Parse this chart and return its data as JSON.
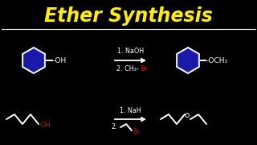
{
  "bg_color": "#000000",
  "title": "Ether Synthesis",
  "title_color": "#FFEE00",
  "title_fontsize": 17,
  "line_color": "#FFFFFF",
  "r1_step1": "1. NaOH",
  "r1_step2_white": "2. CH₃-",
  "r1_step2_red": "Br",
  "r1_reactant_oh": "-OH",
  "r1_product_och3": "-OCH₃",
  "r2_step1": "1. NaH",
  "r2_step2": "2.",
  "r2_step2_red": "Br",
  "r2_oh": "OH",
  "r2_o": "o"
}
